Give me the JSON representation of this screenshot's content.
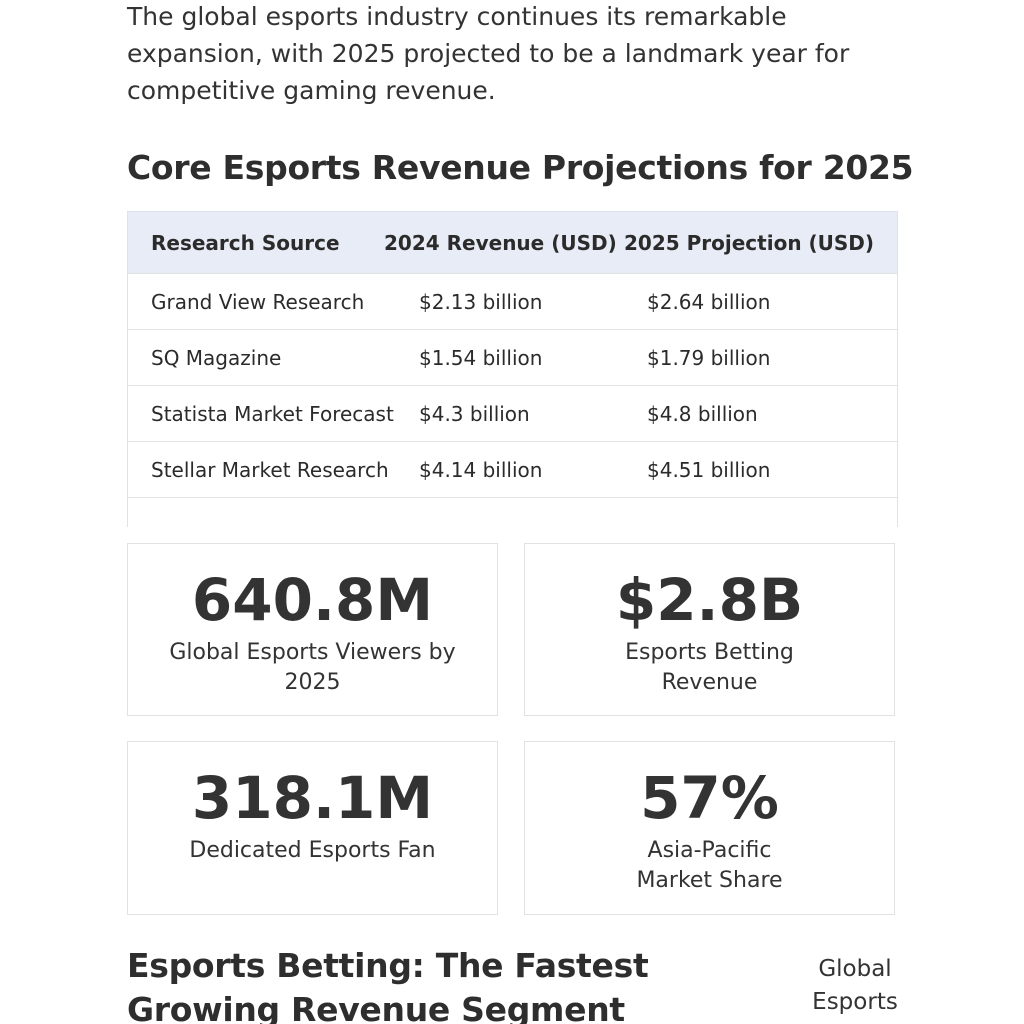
{
  "intro": "The global esports industry continues its remarkable expansion, with 2025 projected to be a landmark year for competitive gaming revenue.",
  "section_title": "Core Esports Revenue Projections for 2025",
  "table": {
    "header": [
      "Research Source",
      "2024 Revenue (USD)",
      "2025 Projection (USD)"
    ],
    "rows": [
      [
        "Grand View Research",
        "$2.13 billion",
        "$2.64 billion"
      ],
      [
        "SQ Magazine",
        "$1.54 billion",
        "$1.79 billion"
      ],
      [
        "Statista Market Forecast",
        "$4.3 billion",
        "$4.8 billion"
      ],
      [
        "Stellar Market Research",
        "$4.14 billion",
        "$4.51 billion"
      ]
    ]
  },
  "stats": [
    {
      "value": "640.8M",
      "label": "Global Esports Viewers by 2025"
    },
    {
      "value": "$2.8B",
      "label": "Esports Betting Revenue"
    },
    {
      "value": "318.1M",
      "label": "Dedicated Esports Fan"
    },
    {
      "value": "57%",
      "label": "Asia-Pacific Market Share"
    }
  ],
  "next_title": "Esports Betting: The Fastest Growing Revenue Segment",
  "side_label": "Global Esports"
}
